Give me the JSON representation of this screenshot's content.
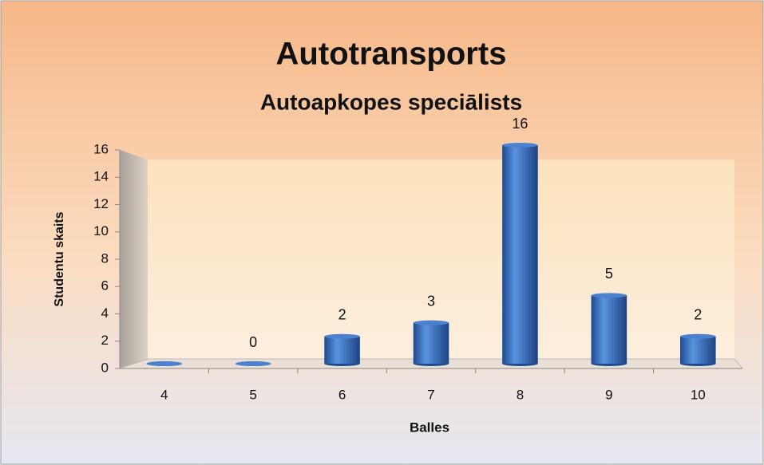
{
  "chart_data": {
    "type": "bar",
    "title": "Autotransports",
    "subtitle": "Autoapkopes speciālists",
    "x_label": "Balles",
    "y_label": "Studentu skaits",
    "categories": [
      "4",
      "5",
      "6",
      "7",
      "8",
      "9",
      "10"
    ],
    "values": [
      0,
      0,
      2,
      3,
      16,
      5,
      2
    ],
    "value_labels": [
      null,
      "0",
      "2",
      "3",
      "16",
      "5",
      "2"
    ],
    "color": "#2f6bc4",
    "ylim": [
      0,
      16
    ],
    "yticks": [
      0,
      2,
      4,
      6,
      8,
      10,
      12,
      14,
      16
    ],
    "grid": false
  }
}
